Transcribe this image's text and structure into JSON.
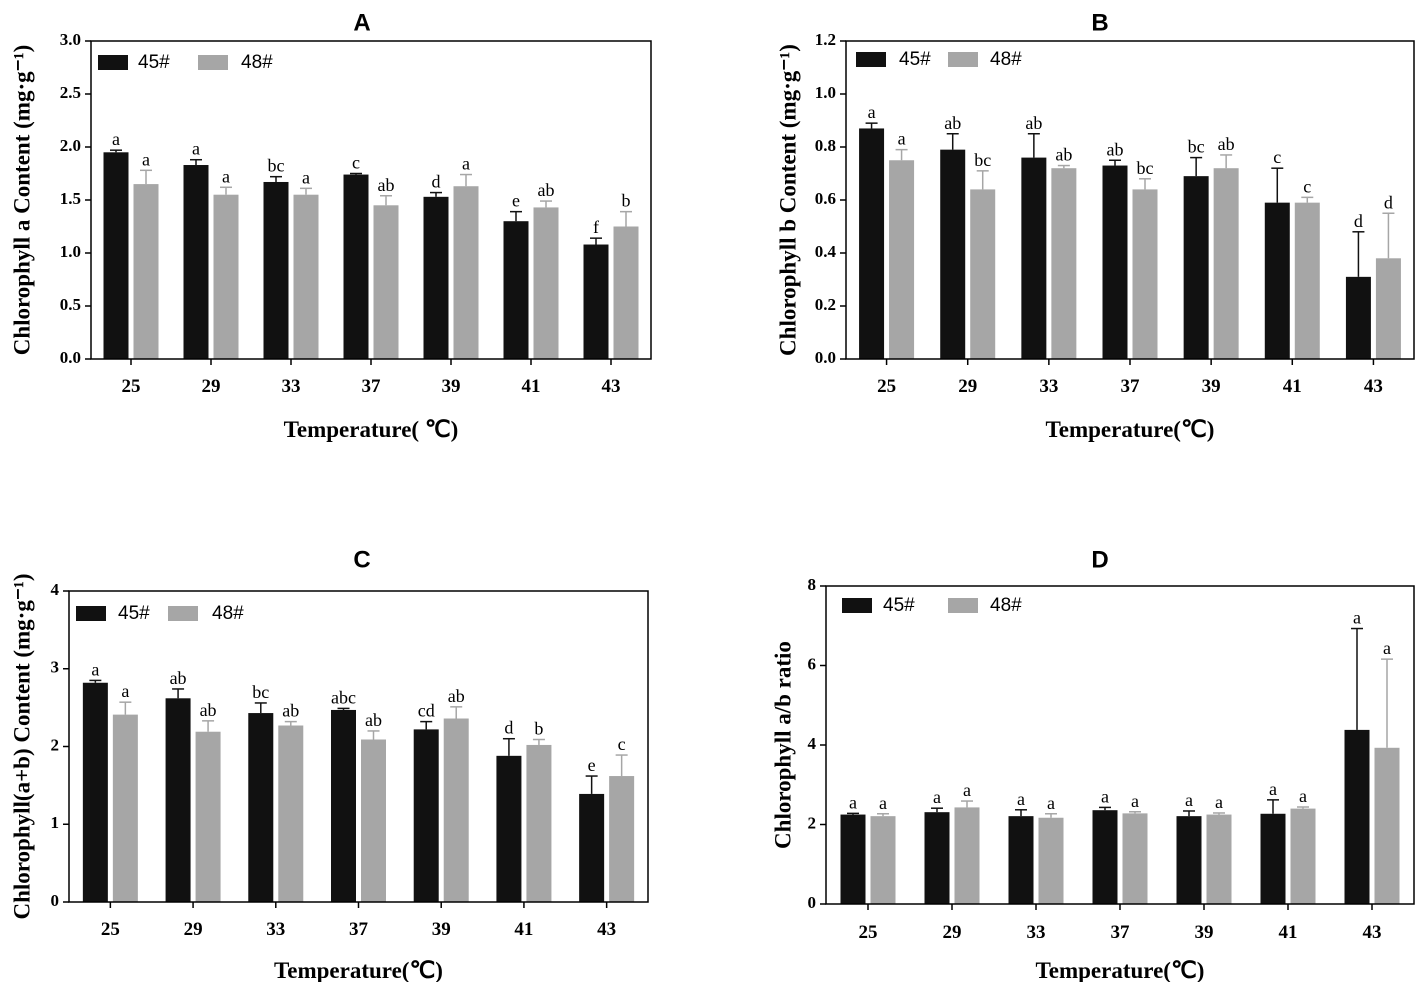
{
  "colors": {
    "series_45": "#111111",
    "series_48": "#a6a6a6",
    "axis": "#000000"
  },
  "chart_data": [
    {
      "panel": "A",
      "type": "bar",
      "title": "A",
      "xlabel": "Temperature( ℃)",
      "ylabel": "Chlorophyll a Content (mg·g⁻¹)",
      "ylim": [
        0,
        3.0
      ],
      "yticks": [
        "0.0",
        "0.5",
        "1.0",
        "1.5",
        "2.0",
        "2.5",
        "3.0"
      ],
      "categories": [
        "25",
        "29",
        "33",
        "37",
        "39",
        "41",
        "43"
      ],
      "legend_position": "top-left",
      "series": [
        {
          "name": "45#",
          "values": [
            1.95,
            1.83,
            1.67,
            1.74,
            1.53,
            1.3,
            1.08
          ],
          "errors": [
            0.02,
            0.05,
            0.05,
            0.01,
            0.04,
            0.09,
            0.06
          ],
          "labels": [
            "a",
            "a",
            "bc",
            "c",
            "d",
            "e",
            "f"
          ]
        },
        {
          "name": "48#",
          "values": [
            1.65,
            1.55,
            1.55,
            1.45,
            1.63,
            1.43,
            1.25
          ],
          "errors": [
            0.13,
            0.07,
            0.06,
            0.09,
            0.11,
            0.06,
            0.14
          ],
          "labels": [
            "a",
            "a",
            "a",
            "ab",
            "a",
            "ab",
            "b"
          ]
        }
      ]
    },
    {
      "panel": "B",
      "type": "bar",
      "title": "B",
      "xlabel": "Temperature(℃)",
      "ylabel": "Chlorophyll b Content (mg·g⁻¹)",
      "ylim": [
        0,
        1.2
      ],
      "yticks": [
        "0.0",
        "0.2",
        "0.4",
        "0.6",
        "0.8",
        "1.0",
        "1.2"
      ],
      "categories": [
        "25",
        "29",
        "33",
        "37",
        "39",
        "41",
        "43"
      ],
      "legend_position": "top-left",
      "series": [
        {
          "name": "45#",
          "values": [
            0.87,
            0.79,
            0.76,
            0.73,
            0.69,
            0.59,
            0.31
          ],
          "errors": [
            0.02,
            0.06,
            0.09,
            0.02,
            0.07,
            0.13,
            0.17
          ],
          "labels": [
            "a",
            "ab",
            "ab",
            "ab",
            "bc",
            "c",
            "d"
          ]
        },
        {
          "name": "48#",
          "values": [
            0.75,
            0.64,
            0.72,
            0.64,
            0.72,
            0.59,
            0.38
          ],
          "errors": [
            0.04,
            0.07,
            0.01,
            0.04,
            0.05,
            0.02,
            0.17
          ],
          "labels": [
            "a",
            "bc",
            "ab",
            "bc",
            "ab",
            "c",
            "d"
          ]
        }
      ]
    },
    {
      "panel": "C",
      "type": "bar",
      "title": "C",
      "xlabel": "Temperature(℃)",
      "ylabel": "Chlorophyll(a+b) Content (mg·g⁻¹)",
      "ylim": [
        0,
        4
      ],
      "yticks": [
        "0",
        "1",
        "2",
        "3",
        "4"
      ],
      "categories": [
        "25",
        "29",
        "33",
        "37",
        "39",
        "41",
        "43"
      ],
      "legend_position": "top-left",
      "series": [
        {
          "name": "45#",
          "values": [
            2.82,
            2.62,
            2.43,
            2.47,
            2.22,
            1.88,
            1.39
          ],
          "errors": [
            0.03,
            0.12,
            0.13,
            0.02,
            0.1,
            0.22,
            0.23
          ],
          "labels": [
            "a",
            "ab",
            "bc",
            "abc",
            "cd",
            "d",
            "e"
          ]
        },
        {
          "name": "48#",
          "values": [
            2.41,
            2.19,
            2.27,
            2.09,
            2.36,
            2.02,
            1.62
          ],
          "errors": [
            0.16,
            0.14,
            0.05,
            0.11,
            0.15,
            0.07,
            0.27
          ],
          "labels": [
            "a",
            "ab",
            "ab",
            "ab",
            "ab",
            "b",
            "c"
          ]
        }
      ]
    },
    {
      "panel": "D",
      "type": "bar",
      "title": "D",
      "xlabel": "Temperature(℃)",
      "ylabel": "Chlorophyll a/b ratio",
      "ylim": [
        0,
        8
      ],
      "yticks": [
        "0",
        "2",
        "4",
        "6",
        "8"
      ],
      "categories": [
        "25",
        "29",
        "33",
        "37",
        "39",
        "41",
        "43"
      ],
      "legend_position": "top-left",
      "series": [
        {
          "name": "45#",
          "values": [
            2.25,
            2.31,
            2.21,
            2.36,
            2.21,
            2.27,
            4.38
          ],
          "errors": [
            0.03,
            0.1,
            0.16,
            0.07,
            0.13,
            0.35,
            2.55
          ],
          "labels": [
            "a",
            "a",
            "a",
            "a",
            "a",
            "a",
            "a"
          ]
        },
        {
          "name": "48#",
          "values": [
            2.21,
            2.43,
            2.17,
            2.28,
            2.25,
            2.4,
            3.93
          ],
          "errors": [
            0.06,
            0.16,
            0.1,
            0.04,
            0.04,
            0.04,
            2.23
          ],
          "labels": [
            "a",
            "a",
            "a",
            "a",
            "a",
            "a",
            "a"
          ]
        }
      ]
    }
  ]
}
